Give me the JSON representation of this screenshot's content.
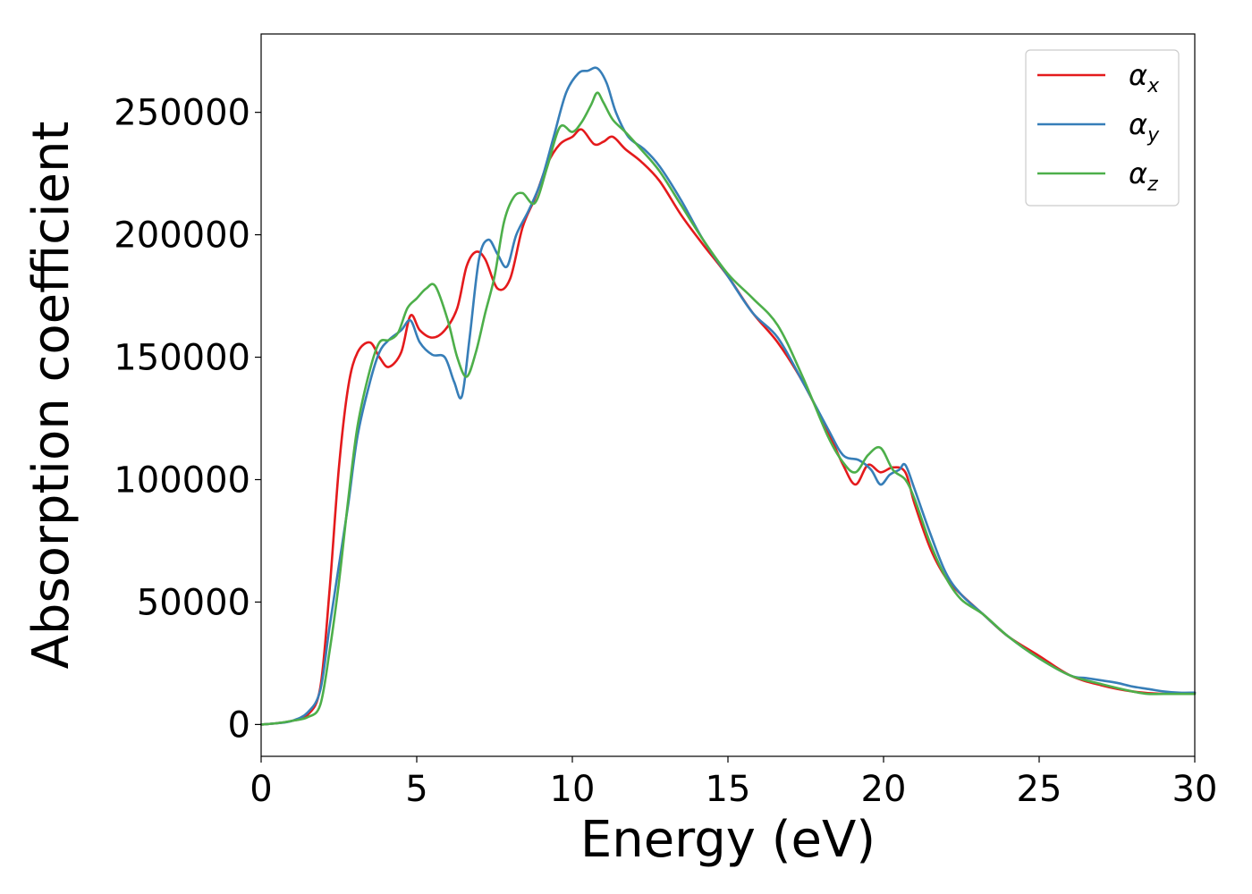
{
  "chart_data": {
    "type": "line",
    "xlabel": "Energy (eV)",
    "ylabel": "Absorption coefficient",
    "xlim": [
      0,
      30
    ],
    "ylim": [
      -13000,
      282000
    ],
    "xticks": [
      0,
      5,
      10,
      15,
      20,
      25,
      30
    ],
    "yticks": [
      0,
      50000,
      100000,
      150000,
      200000,
      250000
    ],
    "grid": false,
    "legend_position": "top-right",
    "series": [
      {
        "name": "α_x",
        "label_main": "α",
        "label_sub": "x",
        "color": "#e41a1c",
        "x": [
          0,
          0.5,
          1.0,
          1.5,
          1.9,
          2.2,
          2.5,
          2.8,
          3.1,
          3.5,
          3.8,
          4.1,
          4.5,
          4.8,
          5.1,
          5.5,
          5.9,
          6.3,
          6.6,
          6.9,
          7.2,
          7.6,
          8.0,
          8.4,
          8.8,
          9.2,
          9.6,
          10.0,
          10.3,
          10.7,
          11.0,
          11.3,
          11.7,
          12.2,
          12.8,
          13.5,
          14.2,
          15.0,
          15.8,
          16.6,
          17.4,
          18.2,
          18.7,
          19.1,
          19.5,
          19.9,
          20.3,
          20.7,
          21.0,
          21.5,
          22.0,
          22.5,
          23.2,
          24.0,
          25.0,
          26.0,
          27.0,
          28.0,
          29.0,
          30.0
        ],
        "y": [
          0,
          500,
          1500,
          4000,
          15000,
          55000,
          105000,
          138000,
          152000,
          156000,
          150000,
          146000,
          152000,
          167000,
          161000,
          158000,
          161000,
          170000,
          187000,
          193000,
          190000,
          178000,
          182000,
          203000,
          215000,
          229000,
          237000,
          240000,
          243000,
          237000,
          238000,
          240000,
          235000,
          230000,
          222000,
          208000,
          196000,
          183000,
          168000,
          156000,
          140000,
          120000,
          106000,
          98000,
          106000,
          103000,
          105000,
          103000,
          90000,
          72000,
          60000,
          53000,
          45000,
          36000,
          28000,
          20000,
          16000,
          13500,
          12500,
          13000
        ]
      },
      {
        "name": "α_y",
        "label_main": "α",
        "label_sub": "y",
        "color": "#377eb8",
        "x": [
          0,
          0.5,
          1.0,
          1.5,
          1.9,
          2.2,
          2.5,
          2.8,
          3.1,
          3.5,
          3.8,
          4.1,
          4.5,
          4.8,
          5.1,
          5.5,
          5.9,
          6.2,
          6.45,
          6.7,
          7.0,
          7.3,
          7.6,
          7.9,
          8.2,
          8.6,
          9.0,
          9.4,
          9.8,
          10.2,
          10.5,
          10.8,
          11.1,
          11.4,
          11.8,
          12.3,
          12.8,
          13.5,
          14.2,
          15.0,
          15.8,
          16.6,
          17.4,
          18.2,
          18.7,
          19.2,
          19.6,
          19.9,
          20.2,
          20.5,
          20.7,
          21.0,
          21.5,
          22.0,
          22.5,
          23.2,
          24.0,
          25.0,
          26.0,
          26.5,
          27.0,
          27.5,
          28.0,
          28.5,
          29.0,
          29.5,
          30.0
        ],
        "y": [
          0,
          500,
          1500,
          5000,
          14000,
          40000,
          65000,
          90000,
          118000,
          140000,
          152000,
          157000,
          161000,
          165000,
          156000,
          151000,
          150000,
          140000,
          134000,
          158000,
          190000,
          198000,
          192000,
          187000,
          200000,
          210000,
          222000,
          240000,
          258000,
          266000,
          267000,
          268000,
          262000,
          250000,
          240000,
          235000,
          228000,
          214000,
          198000,
          183000,
          168000,
          158000,
          140000,
          121000,
          110000,
          108000,
          104000,
          98000,
          102000,
          104000,
          106000,
          96000,
          78000,
          62000,
          53000,
          45000,
          36000,
          27000,
          20000,
          19000,
          18000,
          17000,
          15500,
          14500,
          13500,
          13000,
          13000
        ]
      },
      {
        "name": "α_z",
        "label_main": "α",
        "label_sub": "z",
        "color": "#4daf4a",
        "x": [
          0,
          0.5,
          1.0,
          1.5,
          1.9,
          2.2,
          2.5,
          2.8,
          3.1,
          3.5,
          3.8,
          4.1,
          4.4,
          4.7,
          5.0,
          5.3,
          5.6,
          6.0,
          6.3,
          6.6,
          6.9,
          7.2,
          7.5,
          7.8,
          8.1,
          8.4,
          8.8,
          9.2,
          9.6,
          10.0,
          10.3,
          10.6,
          10.8,
          11.0,
          11.3,
          11.7,
          12.2,
          12.8,
          13.5,
          14.2,
          15.0,
          15.8,
          16.6,
          17.4,
          18.2,
          18.7,
          19.1,
          19.5,
          19.9,
          20.3,
          20.7,
          21.0,
          21.5,
          22.0,
          22.5,
          23.2,
          24.0,
          25.0,
          26.0,
          27.0,
          28.0,
          28.5,
          29.0,
          30.0
        ],
        "y": [
          0,
          500,
          1500,
          3000,
          8000,
          30000,
          58000,
          92000,
          122000,
          145000,
          156000,
          157000,
          160000,
          170000,
          174000,
          178000,
          179000,
          165000,
          150000,
          142000,
          152000,
          168000,
          183000,
          205000,
          215000,
          217000,
          213000,
          228000,
          244000,
          242000,
          246000,
          253000,
          258000,
          254000,
          247000,
          242000,
          235000,
          226000,
          212000,
          198000,
          184000,
          174000,
          163000,
          142000,
          118000,
          107000,
          103000,
          110000,
          113000,
          104000,
          100000,
          92000,
          74000,
          60000,
          51000,
          45000,
          36000,
          27000,
          20000,
          16500,
          13500,
          12500,
          12500,
          12500
        ]
      }
    ]
  }
}
